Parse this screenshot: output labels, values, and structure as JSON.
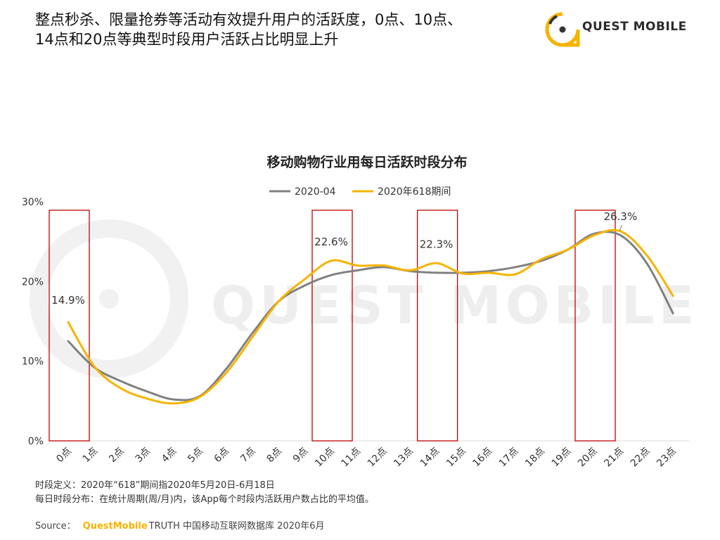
{
  "headline": {
    "line1": "整点秒杀、限量抢券等活动有效提升用户的活跃度，0点、10点、",
    "line2": "14点和20点等典型时段用户活跃占比明显上升"
  },
  "logo": {
    "text": "QUEST MOBILE",
    "color": "#f6b300"
  },
  "watermark": "QUEST MOBILE",
  "chart_data": {
    "type": "line",
    "title": "移动购物行业用每日活跃时段分布",
    "categories": [
      "0点",
      "1点",
      "2点",
      "3点",
      "4点",
      "5点",
      "6点",
      "7点",
      "8点",
      "9点",
      "10点",
      "11点",
      "12点",
      "13点",
      "14点",
      "15点",
      "16点",
      "17点",
      "18点",
      "19点",
      "20点",
      "21点",
      "22点",
      "23点"
    ],
    "series": [
      {
        "name": "2020-04",
        "color": "#808080",
        "values": [
          12.5,
          9.2,
          7.5,
          6.2,
          5.2,
          5.6,
          9.0,
          13.5,
          17.5,
          19.5,
          20.8,
          21.4,
          21.8,
          21.3,
          21.1,
          21.1,
          21.3,
          21.8,
          22.6,
          24.0,
          26.0,
          25.8,
          22.3,
          16.0
        ]
      },
      {
        "name": "2020年618期间",
        "color": "#f6b300",
        "values": [
          14.9,
          9.3,
          6.6,
          5.3,
          4.7,
          5.5,
          8.5,
          13.0,
          17.5,
          20.3,
          22.6,
          22.0,
          22.0,
          21.4,
          22.3,
          21.0,
          21.1,
          20.9,
          22.8,
          24.0,
          25.8,
          26.3,
          23.3,
          18.2
        ]
      }
    ],
    "yticks": [
      "0%",
      "10%",
      "20%",
      "30%"
    ],
    "ylim": [
      0,
      30
    ],
    "highlight_hours": [
      "0点",
      "10点",
      "14点",
      "20点"
    ],
    "highlight_color": "#c00000",
    "annotations": [
      {
        "category": "0点",
        "label": "14.9%"
      },
      {
        "category": "10点",
        "label": "22.6%"
      },
      {
        "category": "14点",
        "label": "22.3%"
      },
      {
        "category": "21点",
        "label": "26.3%"
      }
    ],
    "legend_position": "top"
  },
  "notes": {
    "line1": "时段定义：2020年“618”期间指2020年5月20日-6月18日",
    "line2": "每日时段分布：在统计周期(周/月)内，该App每个时段内活跃用户数占比的平均值。"
  },
  "source": {
    "label": "Source：",
    "brand": "QuestMobile",
    "rest": "TRUTH 中国移动互联网数据库 2020年6月"
  }
}
